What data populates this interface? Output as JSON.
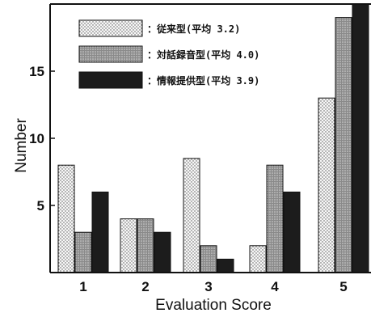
{
  "chart_data": {
    "type": "bar",
    "xlabel": "Evaluation Score",
    "ylabel": "Number",
    "categories": [
      "1",
      "2",
      "3",
      "4",
      "5"
    ],
    "y_ticks": [
      "5",
      "10",
      "15"
    ],
    "ylim": [
      0,
      20
    ],
    "grid": false,
    "legend_position": "top-left",
    "series": [
      {
        "name": "：従来型(平均 3.2)",
        "values": [
          8,
          4,
          8.5,
          2,
          13
        ],
        "pattern": "light-dots",
        "color": "#f2f2f2"
      },
      {
        "name": "：対話録音型(平均 4.0)",
        "values": [
          3,
          4,
          2,
          8,
          19
        ],
        "pattern": "medium-dots",
        "color": "#9a9a9a"
      },
      {
        "name": "：情報提供型(平均 3.9)",
        "values": [
          6,
          3,
          1,
          6,
          20
        ],
        "pattern": "solid",
        "color": "#1c1c1c"
      }
    ]
  }
}
